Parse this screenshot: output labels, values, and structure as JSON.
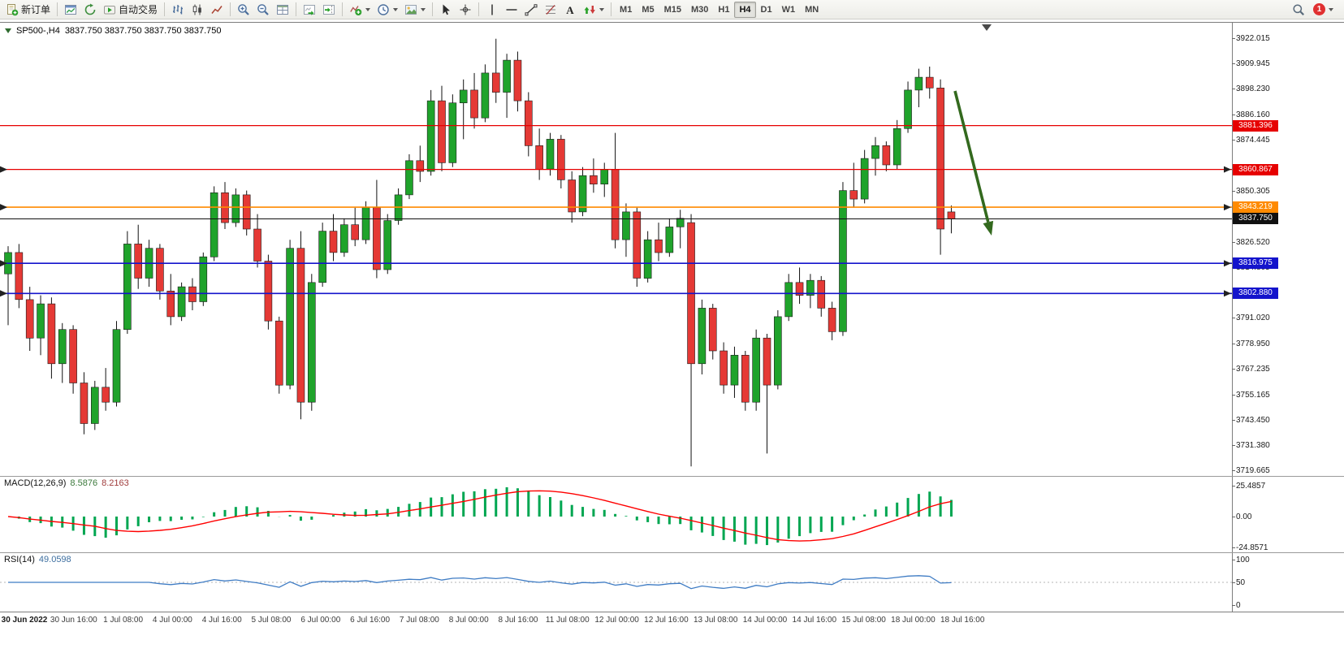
{
  "toolbar": {
    "groups": [
      [
        {
          "name": "new-order-button",
          "icon": "new-order",
          "label": "新订单"
        }
      ],
      [
        {
          "name": "market-watch-button",
          "icon": "market-watch"
        },
        {
          "name": "navigator-button",
          "icon": "navigator"
        },
        {
          "name": "auto-trading-button",
          "icon": "auto-trading",
          "label": "自动交易"
        }
      ],
      [
        {
          "name": "bar-chart-button",
          "icon": "bar-chart"
        },
        {
          "name": "candlestick-button",
          "icon": "candlestick"
        },
        {
          "name": "line-chart-button",
          "icon": "line-chart"
        }
      ],
      [
        {
          "name": "zoom-in-button",
          "icon": "zoom-in"
        },
        {
          "name": "zoom-out-button",
          "icon": "zoom-out"
        },
        {
          "name": "tile-windows-button",
          "icon": "tile-windows"
        }
      ],
      [
        {
          "name": "auto-scroll-button",
          "icon": "auto-scroll"
        },
        {
          "name": "chart-shift-button",
          "icon": "chart-shift"
        }
      ],
      [
        {
          "name": "indicators-button",
          "icon": "indicators",
          "dropdown": true
        },
        {
          "name": "periods-button",
          "icon": "periods",
          "dropdown": true
        },
        {
          "name": "templates-button",
          "icon": "templates",
          "dropdown": true
        }
      ],
      [
        {
          "name": "cursor-button",
          "icon": "cursor"
        },
        {
          "name": "crosshair-button",
          "icon": "crosshair"
        }
      ],
      [
        {
          "name": "vertical-line-button",
          "icon": "vertical-line"
        },
        {
          "name": "horizontal-line-button",
          "icon": "horizontal-line"
        },
        {
          "name": "trendline-button",
          "icon": "trendline"
        },
        {
          "name": "fibonacci-button",
          "icon": "fibonacci"
        },
        {
          "name": "text-button",
          "icon": "text"
        },
        {
          "name": "arrows-button",
          "icon": "arrows",
          "dropdown": true
        }
      ]
    ],
    "timeframes": [
      "M1",
      "M5",
      "M15",
      "M30",
      "H1",
      "H4",
      "D1",
      "W1",
      "MN"
    ],
    "active_timeframe": "H4",
    "notification_count": "1"
  },
  "chart": {
    "title": "SP500-,H4",
    "ohlc_text": "3837.750 3837.750 3837.750 3837.750"
  },
  "chart_data": {
    "type": "candlestick",
    "symbol": "SP500-",
    "timeframe": "H4",
    "price_view": {
      "max": 3929.5,
      "min": 3717.5
    },
    "current_price": "3837.750",
    "axis_labels": [
      "3922.015",
      "3909.945",
      "3898.230",
      "3886.160",
      "3874.445",
      "3850.305",
      "3826.520",
      "3814.805",
      "3791.020",
      "3778.950",
      "3767.235",
      "3755.165",
      "3743.450",
      "3731.380",
      "3719.665"
    ],
    "hlines": [
      {
        "price": 3881.396,
        "label": "3881.396",
        "color": "#e60000",
        "width": 1.3,
        "markers": false
      },
      {
        "price": 3860.867,
        "label": "3860.867",
        "color": "#e60000",
        "width": 1.3,
        "markers": true
      },
      {
        "price": 3843.219,
        "label": "3843.219",
        "color": "#ff8a00",
        "width": 1.6,
        "markers": true
      },
      {
        "price": 3837.75,
        "label": "3837.750",
        "color": "#111111",
        "width": 1.1,
        "markers": false
      },
      {
        "price": 3816.975,
        "label": "3816.975",
        "color": "#1414cc",
        "width": 1.6,
        "markers": true
      },
      {
        "price": 3802.88,
        "label": "3802.880",
        "color": "#1414cc",
        "width": 1.6,
        "markers": true
      }
    ],
    "candles": [
      [
        3812,
        3825,
        3788,
        3822
      ],
      [
        3822,
        3826,
        3796,
        3800
      ],
      [
        3800,
        3806,
        3776,
        3782
      ],
      [
        3782,
        3802,
        3774,
        3798
      ],
      [
        3798,
        3801,
        3763,
        3770
      ],
      [
        3770,
        3789,
        3761,
        3786
      ],
      [
        3786,
        3788,
        3756,
        3761
      ],
      [
        3761,
        3766,
        3737,
        3742
      ],
      [
        3742,
        3762,
        3739,
        3759
      ],
      [
        3759,
        3768,
        3748,
        3752
      ],
      [
        3752,
        3790,
        3750,
        3786
      ],
      [
        3786,
        3832,
        3784,
        3826
      ],
      [
        3826,
        3835,
        3805,
        3810
      ],
      [
        3810,
        3828,
        3806,
        3824
      ],
      [
        3824,
        3826,
        3800,
        3804
      ],
      [
        3804,
        3812,
        3788,
        3792
      ],
      [
        3792,
        3808,
        3790,
        3806
      ],
      [
        3806,
        3810,
        3795,
        3799
      ],
      [
        3799,
        3822,
        3797,
        3820
      ],
      [
        3820,
        3853,
        3818,
        3850
      ],
      [
        3850,
        3855,
        3833,
        3836
      ],
      [
        3836,
        3852,
        3834,
        3849
      ],
      [
        3849,
        3851,
        3830,
        3833
      ],
      [
        3833,
        3840,
        3815,
        3818
      ],
      [
        3818,
        3821,
        3786,
        3790
      ],
      [
        3790,
        3792,
        3756,
        3760
      ],
      [
        3760,
        3828,
        3758,
        3824
      ],
      [
        3824,
        3832,
        3744,
        3752
      ],
      [
        3752,
        3812,
        3748,
        3808
      ],
      [
        3808,
        3836,
        3806,
        3832
      ],
      [
        3832,
        3840,
        3818,
        3822
      ],
      [
        3822,
        3838,
        3820,
        3835
      ],
      [
        3835,
        3843,
        3825,
        3828
      ],
      [
        3828,
        3846,
        3826,
        3843
      ],
      [
        3843,
        3856,
        3810,
        3814
      ],
      [
        3814,
        3840,
        3812,
        3837
      ],
      [
        3837,
        3852,
        3835,
        3849
      ],
      [
        3849,
        3868,
        3847,
        3865
      ],
      [
        3865,
        3872,
        3855,
        3860
      ],
      [
        3860,
        3898,
        3858,
        3893
      ],
      [
        3893,
        3900,
        3860,
        3864
      ],
      [
        3864,
        3896,
        3862,
        3892
      ],
      [
        3892,
        3903,
        3875,
        3898
      ],
      [
        3898,
        3906,
        3880,
        3885
      ],
      [
        3885,
        3910,
        3883,
        3906
      ],
      [
        3906,
        3922,
        3892,
        3897
      ],
      [
        3897,
        3915,
        3885,
        3912
      ],
      [
        3912,
        3916,
        3888,
        3893
      ],
      [
        3893,
        3897,
        3867,
        3872
      ],
      [
        3872,
        3880,
        3856,
        3861
      ],
      [
        3861,
        3878,
        3858,
        3875
      ],
      [
        3875,
        3877,
        3852,
        3856
      ],
      [
        3856,
        3860,
        3836,
        3841
      ],
      [
        3841,
        3862,
        3839,
        3858
      ],
      [
        3858,
        3866,
        3850,
        3854
      ],
      [
        3854,
        3864,
        3848,
        3861
      ],
      [
        3861,
        3878,
        3824,
        3828
      ],
      [
        3828,
        3845,
        3820,
        3841
      ],
      [
        3841,
        3843,
        3806,
        3810
      ],
      [
        3810,
        3832,
        3808,
        3828
      ],
      [
        3828,
        3836,
        3818,
        3822
      ],
      [
        3822,
        3838,
        3820,
        3834
      ],
      [
        3834,
        3842,
        3824,
        3838
      ],
      [
        3836,
        3840,
        3722,
        3770
      ],
      [
        3770,
        3800,
        3765,
        3796
      ],
      [
        3796,
        3798,
        3772,
        3776
      ],
      [
        3776,
        3780,
        3756,
        3760
      ],
      [
        3760,
        3778,
        3754,
        3774
      ],
      [
        3774,
        3776,
        3748,
        3752
      ],
      [
        3752,
        3786,
        3748,
        3782
      ],
      [
        3782,
        3784,
        3728,
        3760
      ],
      [
        3760,
        3795,
        3758,
        3792
      ],
      [
        3792,
        3812,
        3790,
        3808
      ],
      [
        3808,
        3815,
        3798,
        3802
      ],
      [
        3802,
        3812,
        3796,
        3809
      ],
      [
        3809,
        3811,
        3792,
        3796
      ],
      [
        3796,
        3799,
        3781,
        3785
      ],
      [
        3785,
        3855,
        3783,
        3851
      ],
      [
        3851,
        3864,
        3843,
        3847
      ],
      [
        3847,
        3870,
        3845,
        3866
      ],
      [
        3866,
        3876,
        3858,
        3872
      ],
      [
        3872,
        3874,
        3860,
        3863
      ],
      [
        3863,
        3884,
        3861,
        3880
      ],
      [
        3880,
        3902,
        3878,
        3898
      ],
      [
        3898,
        3908,
        3890,
        3904
      ],
      [
        3904,
        3909,
        3894,
        3899
      ],
      [
        3899,
        3903,
        3821,
        3833
      ],
      [
        3841,
        3844,
        3831,
        3837.75
      ]
    ],
    "time_labels": [
      "30 Jun 2022",
      "30 Jun 16:00",
      "1 Jul 08:00",
      "4 Jul 00:00",
      "4 Jul 16:00",
      "5 Jul 08:00",
      "6 Jul 00:00",
      "6 Jul 16:00",
      "7 Jul 08:00",
      "8 Jul 00:00",
      "8 Jul 16:00",
      "11 Jul 08:00",
      "12 Jul 00:00",
      "12 Jul 16:00",
      "13 Jul 08:00",
      "14 Jul 00:00",
      "14 Jul 16:00",
      "15 Jul 08:00",
      "18 Jul 00:00",
      "18 Jul 16:00"
    ],
    "colors": {
      "up": "#1fa32b",
      "down": "#e53935",
      "wick": "#111111",
      "macd_hist": "#00a651",
      "macd_signal": "#ff0000",
      "rsi": "#3f7cc4",
      "arrow": "#33691e"
    },
    "macd": {
      "label": "MACD(12,26,9)",
      "value_main": "8.5876",
      "value_signal": "8.2163",
      "scale": [
        "25.4857",
        "0.00",
        "-24.8571"
      ]
    },
    "rsi": {
      "label": "RSI(14)",
      "value": "49.0598",
      "scale": [
        "100",
        "50",
        "0"
      ]
    }
  }
}
